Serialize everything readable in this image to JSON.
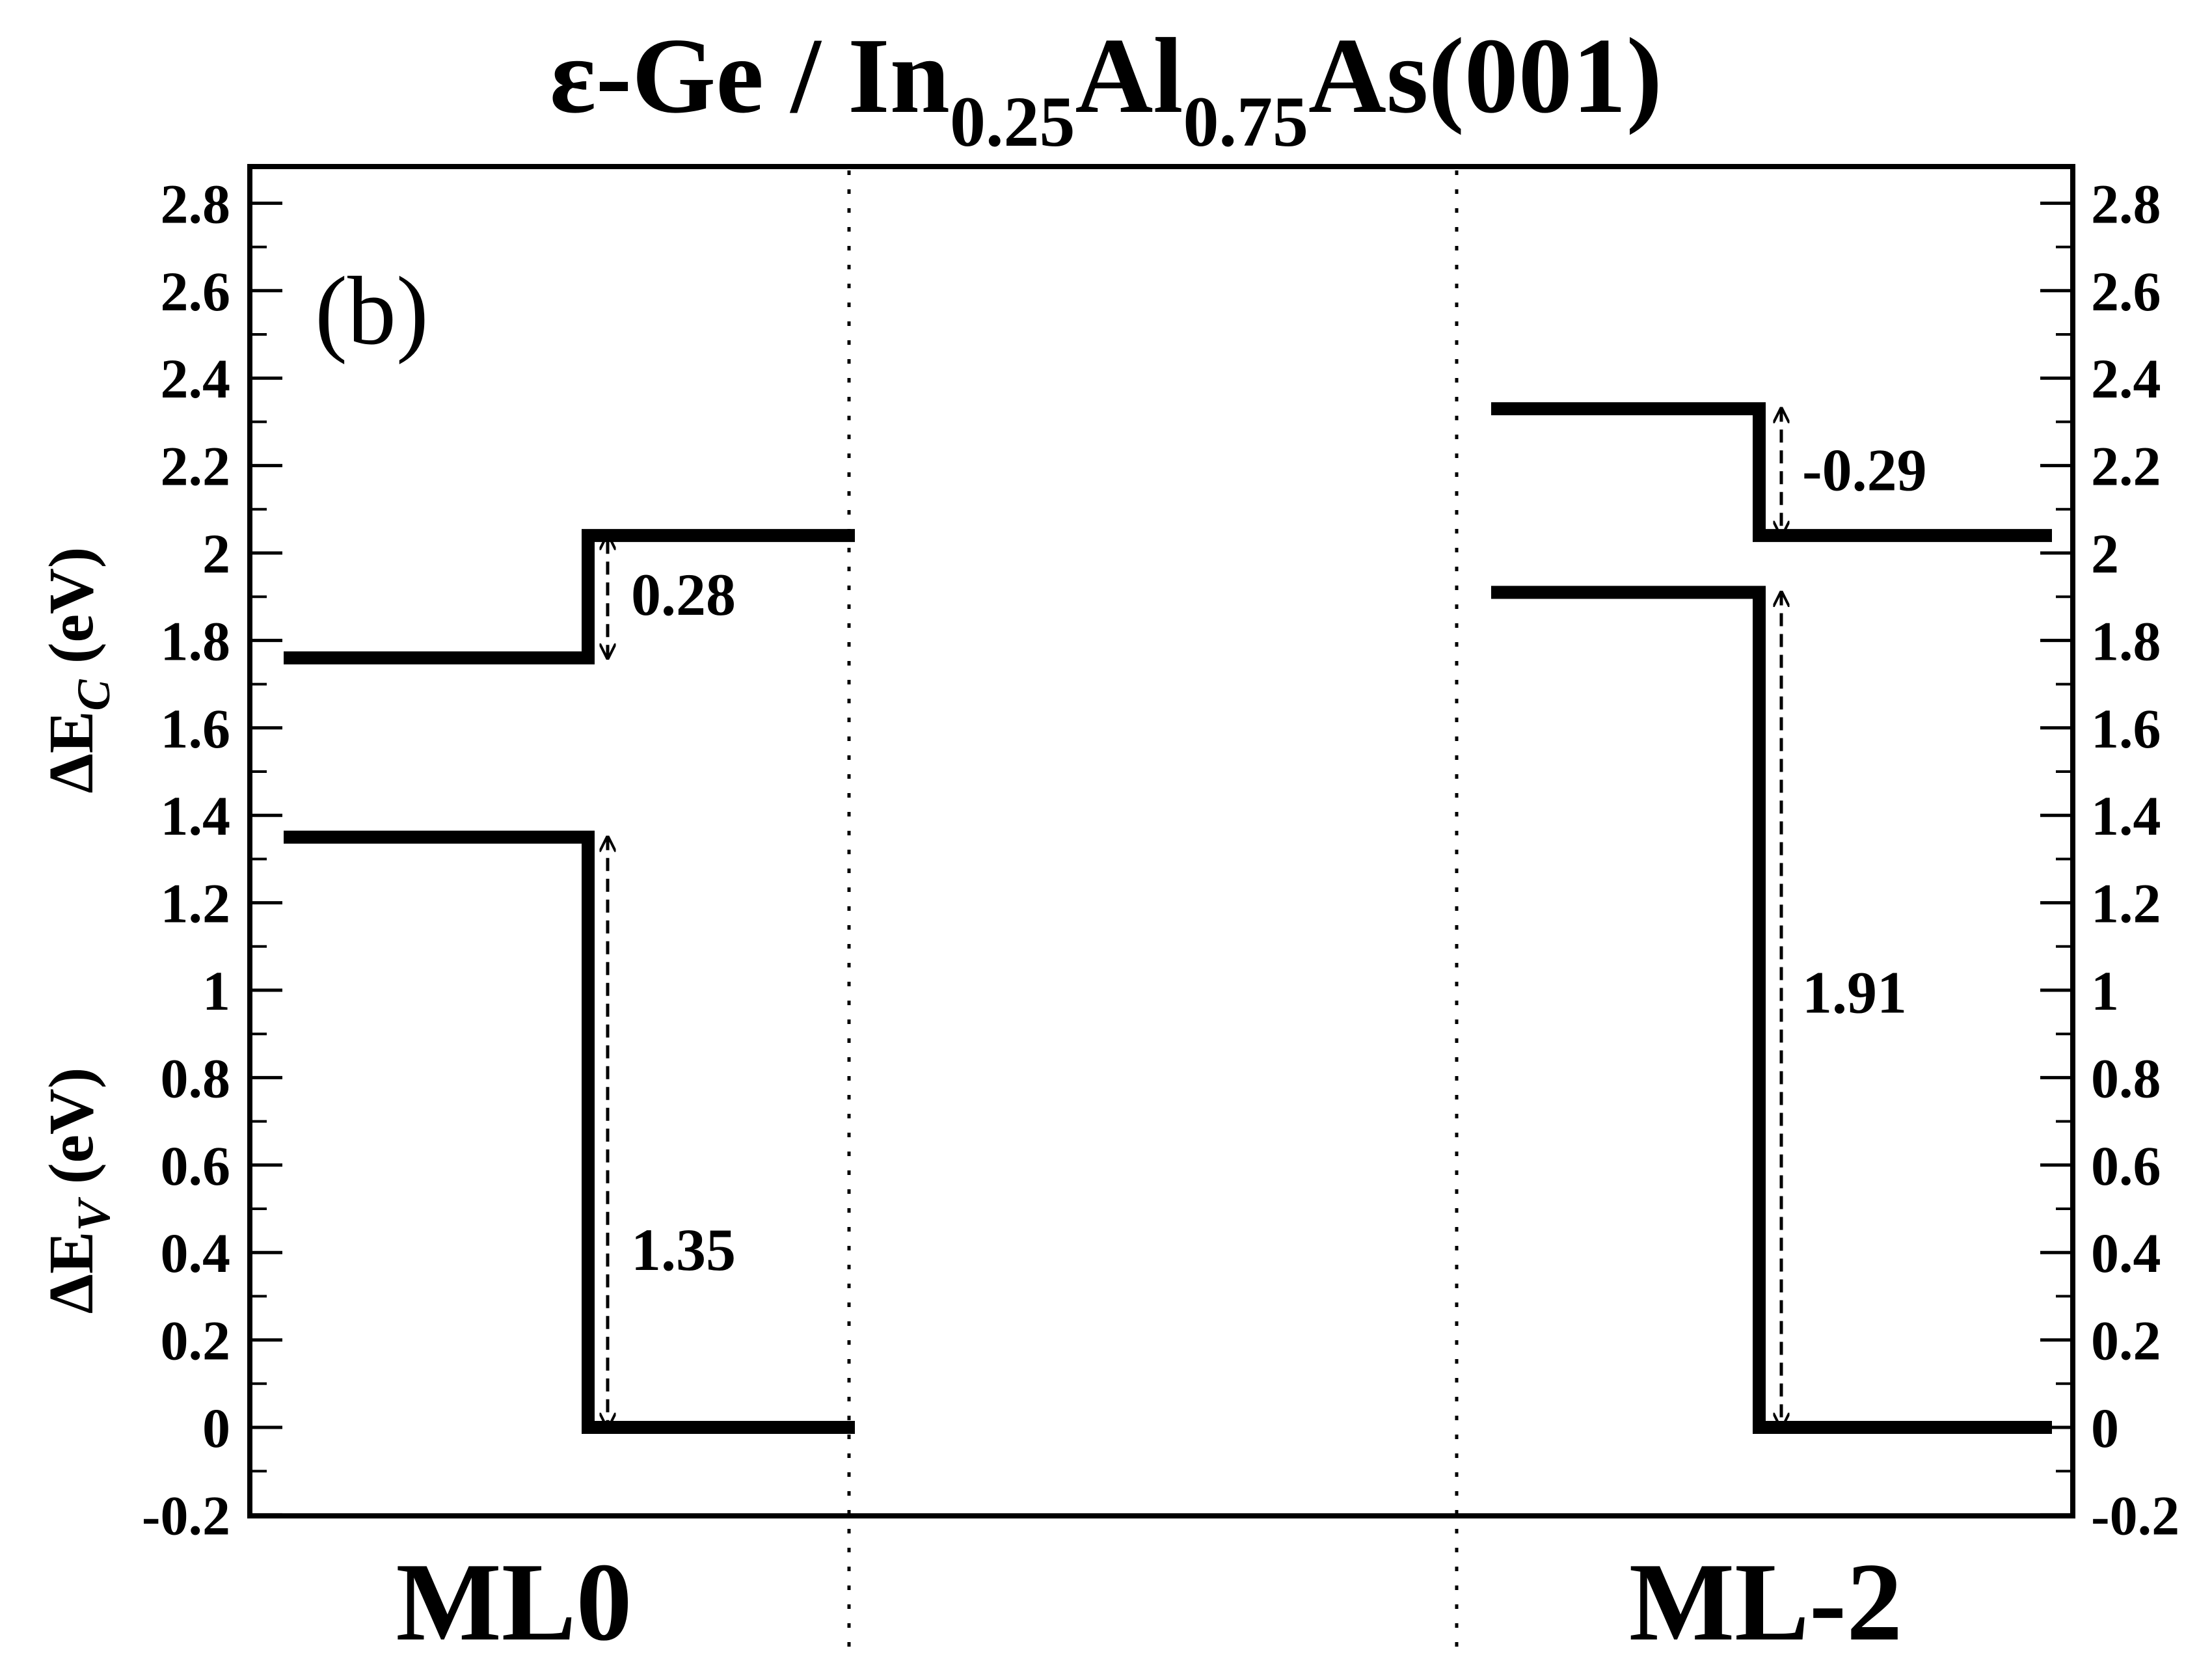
{
  "chart_data": {
    "type": "band-alignment",
    "title": {
      "prefix": "ε-Ge / In",
      "sub1": "0.25",
      "mid": "Al",
      "sub2": "0.75",
      "suffix": "As(001)"
    },
    "panel_label": "(b)",
    "ylabel_upper": {
      "prefix": "ΔE",
      "sub": "C",
      "suffix": " (eV)"
    },
    "ylabel_lower": {
      "prefix": "ΔE",
      "sub": "V",
      "suffix": " (eV)"
    },
    "ylim": [
      -0.2,
      2.9
    ],
    "yticks": [
      {
        "v": 2.8,
        "t": "2.8"
      },
      {
        "v": 2.6,
        "t": "2.6"
      },
      {
        "v": 2.4,
        "t": "2.4"
      },
      {
        "v": 2.2,
        "t": "2.2"
      },
      {
        "v": 2.0,
        "t": "2"
      },
      {
        "v": 1.8,
        "t": "1.8"
      },
      {
        "v": 1.6,
        "t": "1.6"
      },
      {
        "v": 1.4,
        "t": "1.4"
      },
      {
        "v": 1.2,
        "t": "1.2"
      },
      {
        "v": 1.0,
        "t": "1"
      },
      {
        "v": 0.8,
        "t": "0.8"
      },
      {
        "v": 0.6,
        "t": "0.6"
      },
      {
        "v": 0.4,
        "t": "0.4"
      },
      {
        "v": 0.2,
        "t": "0.2"
      },
      {
        "v": 0.0,
        "t": "0"
      },
      {
        "v": -0.2,
        "t": "-0.2"
      }
    ],
    "grid": false,
    "categories": [
      "ML0",
      "ML-2"
    ],
    "interfaces": [
      {
        "name": "ML0",
        "conduction_left": 1.76,
        "conduction_right": 2.04,
        "valence_left": 1.35,
        "valence_right": 0.0,
        "conduction_offset": "0.28",
        "valence_offset": "1.35"
      },
      {
        "name": "ML-2",
        "conduction_left": 2.33,
        "conduction_right": 2.04,
        "valence_left": 1.91,
        "valence_right": 0.0,
        "conduction_offset": "-0.29",
        "valence_offset": "1.91"
      }
    ]
  }
}
